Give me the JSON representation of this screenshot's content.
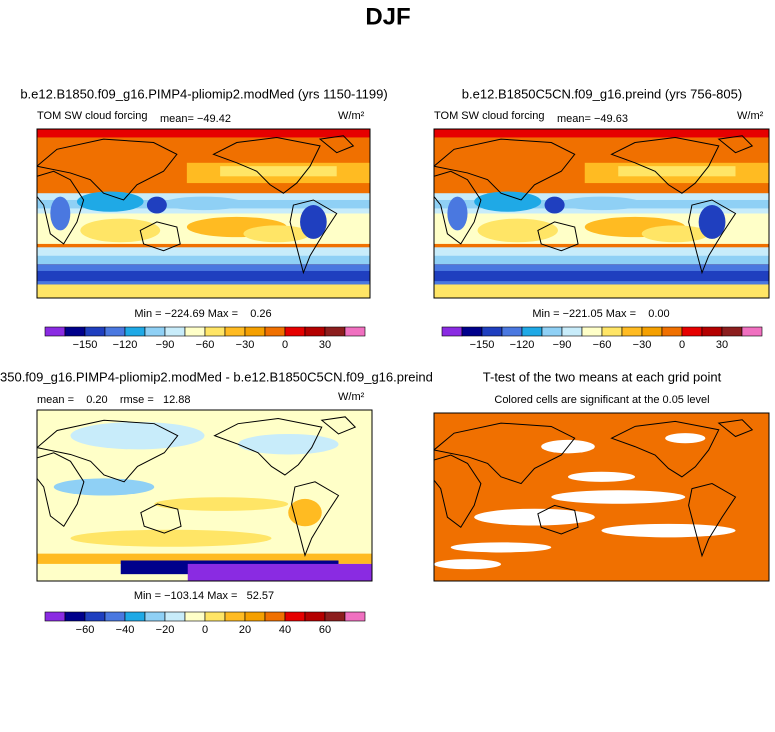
{
  "title": "DJF",
  "panels": [
    {
      "title": "b.e12.B1850.f09_g16.PIMP4-pliomip2.modMed (yrs 1150-1199)",
      "left_label": "TOM SW cloud forcing",
      "mean_label": "mean= −49.42",
      "units": "W/m²",
      "stats": "Min = −224.69 Max =    0.26",
      "colorbar_labels": [
        "−150",
        "−120",
        "−90",
        "−60",
        "−30",
        "0",
        "30"
      ]
    },
    {
      "title": "b.e12.B1850C5CN.f09_g16.preind (yrs 756-805)",
      "left_label": "TOM SW cloud forcing",
      "mean_label": "mean= −49.63",
      "units": "W/m²",
      "stats": "Min = −221.05 Max =    0.00",
      "colorbar_labels": [
        "−150",
        "−120",
        "−90",
        "−60",
        "−30",
        "0",
        "30"
      ]
    },
    {
      "title": "350.f09_g16.PIMP4-pliomip2.modMed - b.e12.B1850C5CN.f09_g16.preind",
      "mean_label": "mean =    0.20    rmse =   12.88",
      "units": "W/m²",
      "stats": "Min = −103.14 Max =   52.57",
      "colorbar_labels": [
        "−60",
        "−40",
        "−20",
        "0",
        "20",
        "40",
        "60"
      ]
    },
    {
      "title": "T-test of the two means at each grid point",
      "subtitle": "Colored cells are significant at the 0.05 level"
    }
  ],
  "palette": [
    "#8a2be2",
    "#00008b",
    "#1f3fbf",
    "#4a78e0",
    "#1fa9e6",
    "#8fd0f5",
    "#c8ecfa",
    "#ffffc8",
    "#ffe566",
    "#ffbb22",
    "#f5a000",
    "#f07000",
    "#e60000",
    "#b40000",
    "#8c1e1e",
    "#f070c0"
  ]
}
